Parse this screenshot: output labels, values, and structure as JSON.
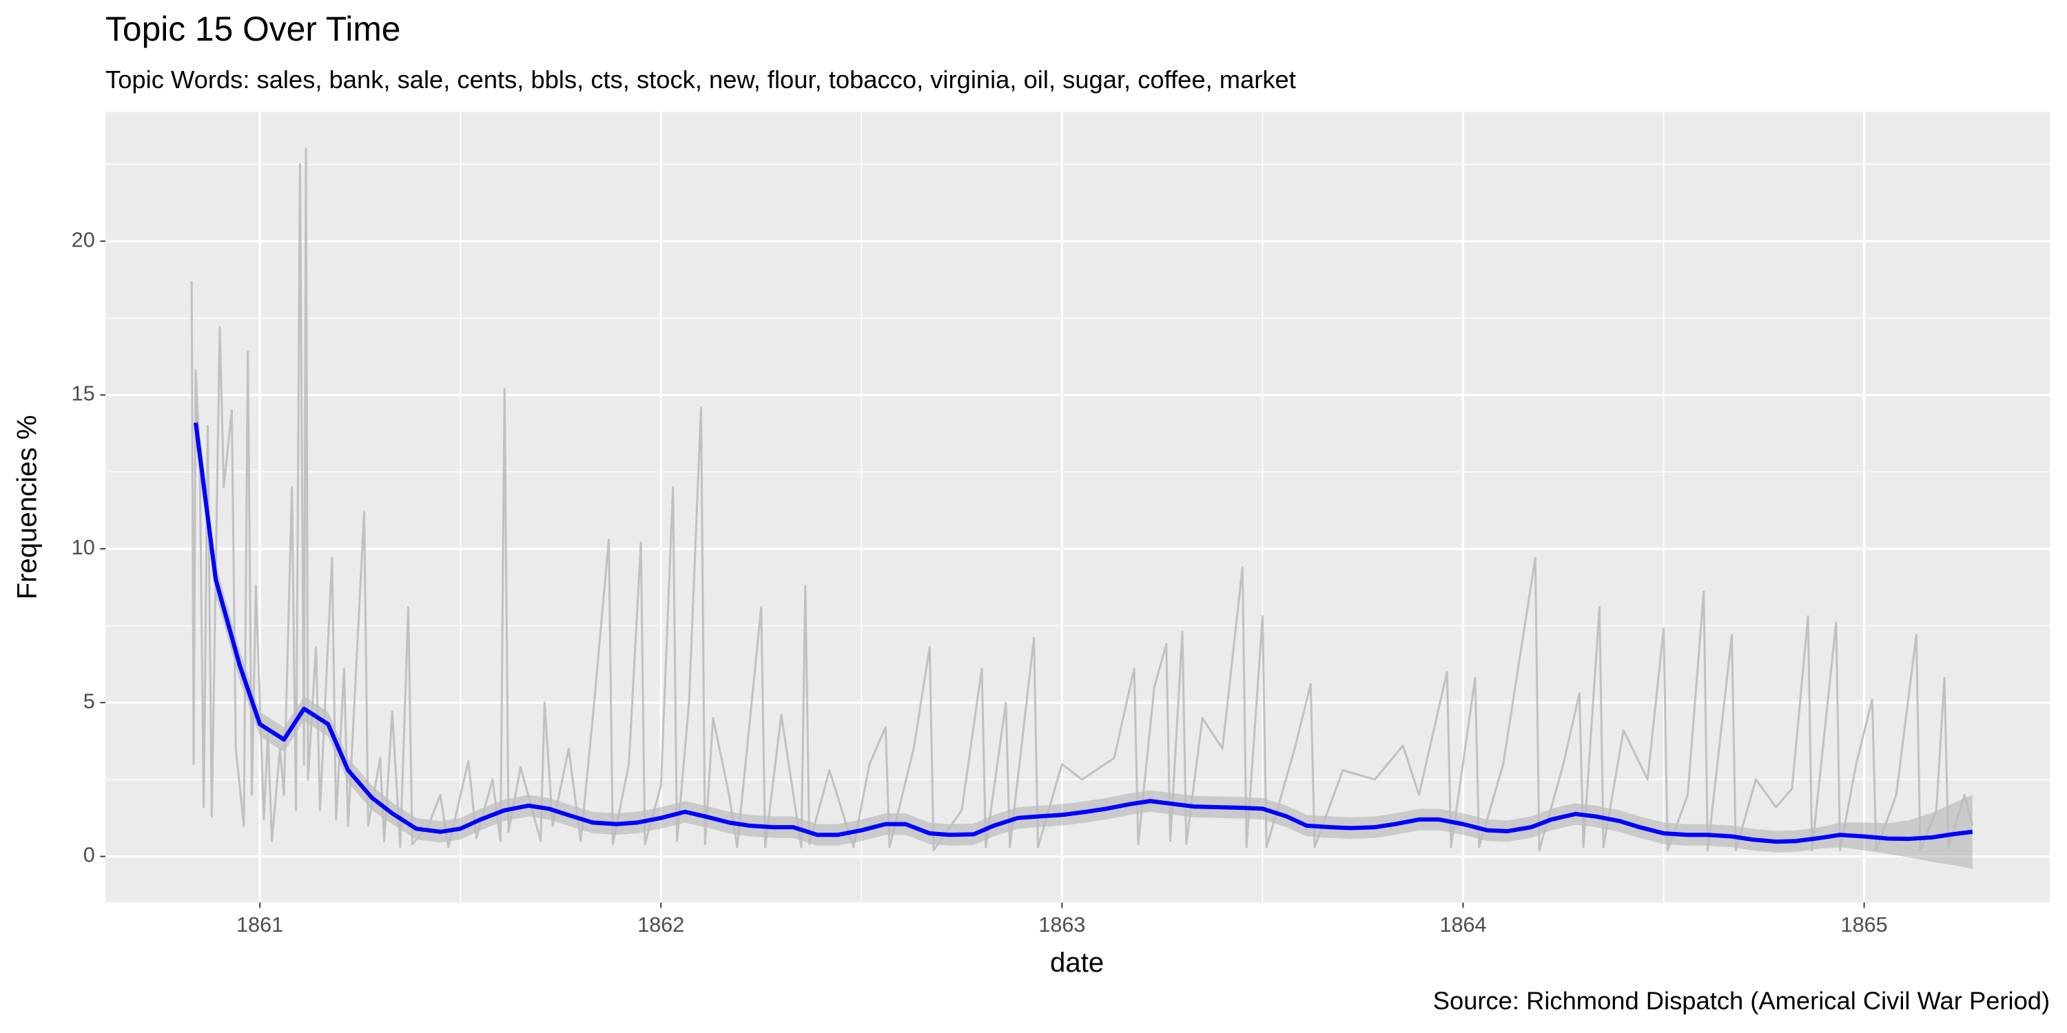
{
  "chart_data": {
    "type": "line",
    "title": "Topic 15 Over Time",
    "subtitle": "Topic Words: sales, bank, sale, cents, bbls, cts, stock, new, flour, tobacco, virginia, oil, sugar, coffee, market",
    "x_label": "date",
    "y_label": "Frequencies %",
    "caption": "Source: Richmond Dispatch (Americal Civil War Period)",
    "xlim": [
      1860.615,
      1865.463
    ],
    "ylim": [
      -1.5,
      24.2
    ],
    "xticks": [
      1861,
      1862,
      1863,
      1864,
      1865
    ],
    "yticks": [
      0,
      5,
      10,
      15,
      20
    ],
    "grid": true,
    "series": [
      {
        "color": "#bdbdbd",
        "x": [
          1860.83,
          1860.835,
          1860.84,
          1860.85,
          1860.86,
          1860.87,
          1860.88,
          1860.9,
          1860.91,
          1860.93,
          1860.94,
          1860.96,
          1860.97,
          1860.98,
          1860.99,
          1861.01,
          1861.02,
          1861.03,
          1861.05,
          1861.06,
          1861.08,
          1861.09,
          1861.1,
          1861.11,
          1861.115,
          1861.12,
          1861.14,
          1861.15,
          1861.18,
          1861.19,
          1861.21,
          1861.22,
          1861.26,
          1861.27,
          1861.3,
          1861.31,
          1861.33,
          1861.35,
          1861.37,
          1861.38,
          1861.42,
          1861.45,
          1861.47,
          1861.52,
          1861.54,
          1861.58,
          1861.6,
          1861.61,
          1861.62,
          1861.65,
          1861.7,
          1861.71,
          1861.73,
          1861.77,
          1861.8,
          1861.83,
          1861.87,
          1861.88,
          1861.92,
          1861.95,
          1861.96,
          1862.0,
          1862.03,
          1862.04,
          1862.07,
          1862.1,
          1862.11,
          1862.13,
          1862.17,
          1862.19,
          1862.25,
          1862.26,
          1862.3,
          1862.35,
          1862.36,
          1862.37,
          1862.42,
          1862.48,
          1862.52,
          1862.56,
          1862.57,
          1862.63,
          1862.67,
          1862.68,
          1862.75,
          1862.8,
          1862.81,
          1862.86,
          1862.87,
          1862.93,
          1862.94,
          1863.0,
          1863.05,
          1863.13,
          1863.18,
          1863.19,
          1863.23,
          1863.26,
          1863.27,
          1863.3,
          1863.31,
          1863.35,
          1863.4,
          1863.45,
          1863.46,
          1863.5,
          1863.51,
          1863.58,
          1863.62,
          1863.63,
          1863.7,
          1863.78,
          1863.85,
          1863.89,
          1863.96,
          1863.97,
          1864.03,
          1864.04,
          1864.1,
          1864.18,
          1864.19,
          1864.25,
          1864.29,
          1864.3,
          1864.34,
          1864.35,
          1864.4,
          1864.46,
          1864.5,
          1864.51,
          1864.56,
          1864.6,
          1864.61,
          1864.67,
          1864.68,
          1864.73,
          1864.78,
          1864.82,
          1864.86,
          1864.87,
          1864.93,
          1864.94,
          1864.98,
          1865.02,
          1865.03,
          1865.08,
          1865.13,
          1865.14,
          1865.18,
          1865.2,
          1865.21,
          1865.25,
          1865.27
        ],
        "values": [
          18.7,
          3.0,
          15.8,
          13.0,
          1.6,
          14.0,
          1.3,
          17.2,
          12.0,
          14.5,
          3.5,
          1.0,
          16.4,
          2.0,
          8.8,
          1.2,
          4.0,
          0.5,
          3.5,
          2.0,
          12.0,
          1.5,
          22.5,
          3.0,
          23.0,
          2.5,
          6.8,
          1.5,
          9.7,
          1.2,
          6.1,
          1.0,
          11.2,
          1.0,
          3.2,
          0.5,
          4.7,
          0.3,
          8.1,
          0.4,
          1.0,
          2.0,
          0.3,
          3.1,
          0.6,
          2.5,
          0.5,
          15.2,
          0.8,
          2.9,
          0.5,
          5.0,
          1.0,
          3.5,
          0.5,
          4.5,
          10.3,
          0.4,
          3.0,
          10.2,
          0.4,
          2.3,
          12.0,
          0.5,
          5.0,
          14.6,
          0.4,
          4.5,
          2.0,
          0.3,
          8.1,
          0.3,
          4.6,
          0.3,
          8.8,
          0.4,
          2.8,
          0.3,
          3.0,
          4.2,
          0.3,
          3.5,
          6.8,
          0.2,
          1.5,
          6.1,
          0.3,
          5.0,
          0.3,
          7.1,
          0.3,
          3.0,
          2.5,
          3.2,
          6.1,
          0.4,
          5.5,
          6.9,
          0.5,
          7.3,
          0.4,
          4.5,
          3.5,
          9.4,
          0.3,
          7.8,
          0.3,
          3.5,
          5.6,
          0.3,
          2.8,
          2.5,
          3.6,
          2.0,
          6.0,
          0.3,
          5.8,
          0.3,
          3.0,
          9.7,
          0.2,
          3.0,
          5.3,
          0.3,
          8.1,
          0.3,
          4.1,
          2.5,
          7.4,
          0.2,
          2.0,
          8.6,
          0.2,
          7.2,
          0.2,
          2.5,
          1.6,
          2.2,
          7.8,
          0.2,
          7.6,
          0.2,
          3.0,
          5.1,
          0.2,
          2.0,
          7.2,
          0.2,
          1.5,
          5.8,
          0.3,
          2.0,
          1.0
        ]
      },
      {
        "color": "#0000ff",
        "band_color": "#999999",
        "x": [
          1860.84,
          1860.89,
          1860.95,
          1861.0,
          1861.06,
          1861.11,
          1861.17,
          1861.22,
          1861.28,
          1861.33,
          1861.39,
          1861.45,
          1861.5,
          1861.55,
          1861.61,
          1861.67,
          1861.72,
          1861.78,
          1861.83,
          1861.89,
          1861.94,
          1862.0,
          1862.06,
          1862.11,
          1862.17,
          1862.22,
          1862.28,
          1862.33,
          1862.39,
          1862.44,
          1862.5,
          1862.56,
          1862.61,
          1862.67,
          1862.72,
          1862.78,
          1862.83,
          1862.89,
          1862.94,
          1863.0,
          1863.06,
          1863.11,
          1863.17,
          1863.22,
          1863.28,
          1863.33,
          1863.39,
          1863.45,
          1863.5,
          1863.56,
          1863.61,
          1863.67,
          1863.72,
          1863.78,
          1863.83,
          1863.89,
          1863.94,
          1864.0,
          1864.06,
          1864.11,
          1864.17,
          1864.22,
          1864.28,
          1864.33,
          1864.39,
          1864.44,
          1864.5,
          1864.56,
          1864.61,
          1864.67,
          1864.72,
          1864.78,
          1864.83,
          1864.89,
          1864.94,
          1865.0,
          1865.06,
          1865.11,
          1865.17,
          1865.22,
          1865.27
        ],
        "values": [
          14.1,
          9.0,
          6.2,
          4.3,
          3.8,
          4.8,
          4.3,
          2.8,
          1.9,
          1.4,
          0.9,
          0.8,
          0.9,
          1.2,
          1.5,
          1.65,
          1.55,
          1.3,
          1.1,
          1.05,
          1.1,
          1.25,
          1.45,
          1.3,
          1.1,
          1.0,
          0.95,
          0.95,
          0.7,
          0.7,
          0.85,
          1.05,
          1.05,
          0.75,
          0.7,
          0.72,
          1.0,
          1.25,
          1.3,
          1.35,
          1.45,
          1.55,
          1.7,
          1.8,
          1.7,
          1.62,
          1.6,
          1.58,
          1.55,
          1.3,
          1.0,
          0.95,
          0.92,
          0.95,
          1.05,
          1.2,
          1.2,
          1.05,
          0.85,
          0.82,
          0.95,
          1.2,
          1.38,
          1.3,
          1.15,
          0.95,
          0.75,
          0.7,
          0.7,
          0.65,
          0.55,
          0.48,
          0.5,
          0.6,
          0.7,
          0.65,
          0.58,
          0.57,
          0.62,
          0.72,
          0.8
        ],
        "lower": [
          13.4,
          8.5,
          5.7,
          3.9,
          3.4,
          4.4,
          3.9,
          2.4,
          1.5,
          1.05,
          0.55,
          0.45,
          0.55,
          0.85,
          1.15,
          1.3,
          1.2,
          0.95,
          0.75,
          0.7,
          0.75,
          0.9,
          1.1,
          0.95,
          0.75,
          0.65,
          0.6,
          0.6,
          0.35,
          0.35,
          0.5,
          0.7,
          0.7,
          0.4,
          0.35,
          0.37,
          0.65,
          0.9,
          0.95,
          1.0,
          1.1,
          1.2,
          1.35,
          1.45,
          1.35,
          1.27,
          1.25,
          1.23,
          1.2,
          0.95,
          0.65,
          0.6,
          0.57,
          0.6,
          0.7,
          0.85,
          0.85,
          0.7,
          0.5,
          0.47,
          0.6,
          0.85,
          1.03,
          0.95,
          0.8,
          0.6,
          0.4,
          0.35,
          0.35,
          0.3,
          0.2,
          0.13,
          0.15,
          0.25,
          0.3,
          0.2,
          0.08,
          -0.03,
          -0.18,
          -0.28,
          -0.4
        ],
        "upper": [
          14.8,
          9.5,
          6.7,
          4.7,
          4.2,
          5.2,
          4.7,
          3.2,
          2.3,
          1.75,
          1.25,
          1.15,
          1.25,
          1.55,
          1.85,
          2.0,
          1.9,
          1.65,
          1.45,
          1.4,
          1.45,
          1.6,
          1.8,
          1.65,
          1.45,
          1.35,
          1.3,
          1.3,
          1.05,
          1.05,
          1.2,
          1.4,
          1.4,
          1.1,
          1.05,
          1.07,
          1.35,
          1.6,
          1.65,
          1.7,
          1.8,
          1.9,
          2.05,
          2.15,
          2.05,
          1.97,
          1.95,
          1.93,
          1.9,
          1.65,
          1.35,
          1.3,
          1.27,
          1.3,
          1.4,
          1.55,
          1.55,
          1.4,
          1.2,
          1.17,
          1.3,
          1.55,
          1.73,
          1.65,
          1.5,
          1.3,
          1.1,
          1.05,
          1.05,
          1.0,
          0.9,
          0.83,
          0.85,
          0.95,
          1.1,
          1.1,
          1.08,
          1.17,
          1.42,
          1.72,
          2.0
        ]
      }
    ]
  }
}
